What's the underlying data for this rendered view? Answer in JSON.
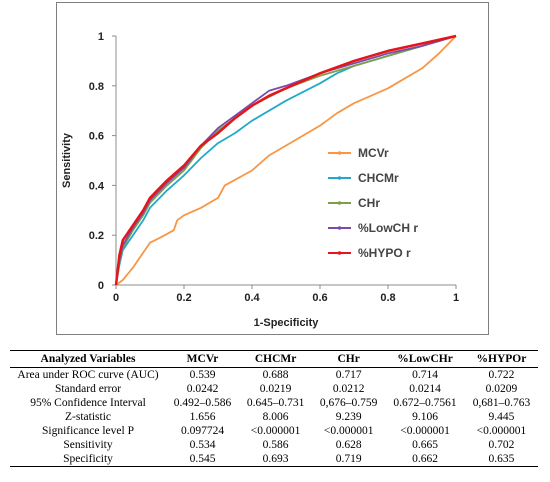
{
  "chart_data": {
    "type": "line",
    "title": "",
    "xlabel": "1-Specificity",
    "ylabel": "Sensitivity",
    "xlim": [
      0,
      1
    ],
    "ylim": [
      0,
      1
    ],
    "x_ticks": [
      "0",
      "0.2",
      "0.4",
      "0.6",
      "0.8",
      "1"
    ],
    "y_ticks": [
      "0",
      "0.2",
      "0.4",
      "0.6",
      "0.8",
      "1"
    ],
    "legend_position": "right",
    "series": [
      {
        "name": "MCVr",
        "color": "#F79646",
        "points": [
          [
            0,
            0
          ],
          [
            0.02,
            0.02
          ],
          [
            0.05,
            0.07
          ],
          [
            0.08,
            0.13
          ],
          [
            0.1,
            0.17
          ],
          [
            0.13,
            0.19
          ],
          [
            0.17,
            0.22
          ],
          [
            0.18,
            0.26
          ],
          [
            0.2,
            0.28
          ],
          [
            0.25,
            0.31
          ],
          [
            0.3,
            0.35
          ],
          [
            0.32,
            0.4
          ],
          [
            0.4,
            0.46
          ],
          [
            0.45,
            0.52
          ],
          [
            0.55,
            0.6
          ],
          [
            0.6,
            0.64
          ],
          [
            0.62,
            0.66
          ],
          [
            0.65,
            0.69
          ],
          [
            0.7,
            0.73
          ],
          [
            0.75,
            0.76
          ],
          [
            0.8,
            0.79
          ],
          [
            0.85,
            0.83
          ],
          [
            0.9,
            0.87
          ],
          [
            0.95,
            0.93
          ],
          [
            1,
            1
          ]
        ]
      },
      {
        "name": "CHCMr",
        "color": "#23A8C9",
        "points": [
          [
            0,
            0
          ],
          [
            0.01,
            0.08
          ],
          [
            0.02,
            0.14
          ],
          [
            0.05,
            0.2
          ],
          [
            0.08,
            0.26
          ],
          [
            0.1,
            0.31
          ],
          [
            0.15,
            0.38
          ],
          [
            0.2,
            0.44
          ],
          [
            0.25,
            0.51
          ],
          [
            0.3,
            0.57
          ],
          [
            0.35,
            0.61
          ],
          [
            0.4,
            0.66
          ],
          [
            0.5,
            0.74
          ],
          [
            0.6,
            0.81
          ],
          [
            0.65,
            0.85
          ],
          [
            0.7,
            0.88
          ],
          [
            0.8,
            0.92
          ],
          [
            0.9,
            0.96
          ],
          [
            1,
            1
          ]
        ]
      },
      {
        "name": "CHr",
        "color": "#7F9E4A",
        "points": [
          [
            0,
            0
          ],
          [
            0.01,
            0.09
          ],
          [
            0.02,
            0.15
          ],
          [
            0.05,
            0.22
          ],
          [
            0.08,
            0.28
          ],
          [
            0.1,
            0.33
          ],
          [
            0.15,
            0.4
          ],
          [
            0.2,
            0.46
          ],
          [
            0.25,
            0.55
          ],
          [
            0.3,
            0.62
          ],
          [
            0.35,
            0.67
          ],
          [
            0.4,
            0.72
          ],
          [
            0.5,
            0.79
          ],
          [
            0.6,
            0.84
          ],
          [
            0.7,
            0.88
          ],
          [
            0.8,
            0.92
          ],
          [
            0.9,
            0.96
          ],
          [
            1,
            1
          ]
        ]
      },
      {
        "name": "%LowCH r",
        "color": "#7B4BA8",
        "points": [
          [
            0,
            0
          ],
          [
            0.01,
            0.1
          ],
          [
            0.02,
            0.16
          ],
          [
            0.05,
            0.23
          ],
          [
            0.08,
            0.29
          ],
          [
            0.1,
            0.34
          ],
          [
            0.15,
            0.41
          ],
          [
            0.2,
            0.47
          ],
          [
            0.25,
            0.56
          ],
          [
            0.3,
            0.63
          ],
          [
            0.35,
            0.68
          ],
          [
            0.4,
            0.73
          ],
          [
            0.45,
            0.78
          ],
          [
            0.5,
            0.8
          ],
          [
            0.6,
            0.85
          ],
          [
            0.7,
            0.89
          ],
          [
            0.8,
            0.93
          ],
          [
            0.9,
            0.96
          ],
          [
            1,
            1
          ]
        ]
      },
      {
        "name": "%HYPO r",
        "color": "#E3161B",
        "points": [
          [
            0,
            0
          ],
          [
            0.01,
            0.12
          ],
          [
            0.02,
            0.18
          ],
          [
            0.05,
            0.24
          ],
          [
            0.08,
            0.3
          ],
          [
            0.1,
            0.35
          ],
          [
            0.15,
            0.42
          ],
          [
            0.2,
            0.48
          ],
          [
            0.25,
            0.56
          ],
          [
            0.3,
            0.61
          ],
          [
            0.35,
            0.67
          ],
          [
            0.4,
            0.72
          ],
          [
            0.45,
            0.76
          ],
          [
            0.5,
            0.79
          ],
          [
            0.6,
            0.85
          ],
          [
            0.7,
            0.9
          ],
          [
            0.8,
            0.94
          ],
          [
            0.9,
            0.97
          ],
          [
            1,
            1
          ]
        ]
      }
    ]
  },
  "table": {
    "headers": [
      "Analyzed Variables",
      "MCVr",
      "CHCMr",
      "CHr",
      "%LowCHr",
      "%HYPOr"
    ],
    "rows": [
      [
        "Area under ROC curve (AUC)",
        "0.539",
        "0.688",
        "0.717",
        "0.714",
        "0.722"
      ],
      [
        "Standard error",
        "0.0242",
        "0.0219",
        "0.0212",
        "0.0214",
        "0.0209"
      ],
      [
        "95% Confidence Interval",
        "0.492–0.586",
        "0.645–0.731",
        "0,676–0.759",
        "0.672–0.7561",
        "0,681–0.763"
      ],
      [
        "Z-statistic",
        "1.656",
        "8.006",
        "9.239",
        "9.106",
        "9.445"
      ],
      [
        "Significance level P",
        "0.097724",
        "<0.000001",
        "<0.000001",
        "<0.000001",
        "<0.000001"
      ],
      [
        "Sensitivity",
        "0.534",
        "0.586",
        "0.628",
        "0.665",
        "0.702"
      ],
      [
        "Specificity",
        "0.545",
        "0.693",
        "0.719",
        "0.662",
        "0.635"
      ]
    ]
  }
}
